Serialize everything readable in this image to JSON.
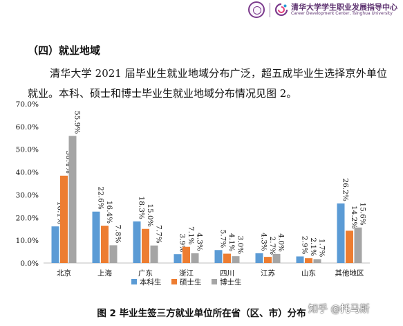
{
  "header": {
    "logo_cn": "清华大学学生职业发展指导中心",
    "logo_en": "Career Development Center, Tsinghua University"
  },
  "section_heading": "（四）就业地域",
  "paragraph": "清华大学 2021 届毕业生就业地域分布广泛，超五成毕业生选择京外单位就业。本科、硕士和博士毕业生就业地域分布情况见图 2。",
  "caption": "图 2 毕业生签三方就业单位所在省（区、市）分布",
  "watermark": "知乎 @托马斯",
  "colors": {
    "undergrad": "#5b9bd5",
    "master": "#ed7d31",
    "phd": "#a5a5a5"
  },
  "chart_data": {
    "type": "bar",
    "categories": [
      "北京",
      "上海",
      "广东",
      "浙江",
      "四川",
      "江苏",
      "山东",
      "其他地区"
    ],
    "series": [
      {
        "name": "本科生",
        "values": [
          16.1,
          22.6,
          18.3,
          3.9,
          5.7,
          4.3,
          2.9,
          26.2
        ],
        "labels": [
          "16.1%",
          "22.6%",
          "18.3%",
          "3.9%",
          "5.7%",
          "4.3%",
          "2.9%",
          "26.2%"
        ]
      },
      {
        "name": "硕士生",
        "values": [
          38.4,
          16.4,
          15.0,
          7.1,
          4.1,
          2.7,
          2.1,
          14.2
        ],
        "labels": [
          "38.4%",
          "16.4%",
          "15.0%",
          "7.1%",
          "4.1%",
          "2.7%",
          "2.1%",
          "14.2%"
        ]
      },
      {
        "name": "博士生",
        "values": [
          55.9,
          7.8,
          7.7,
          4.3,
          3.0,
          4.0,
          1.7,
          15.6
        ],
        "labels": [
          "55.9%",
          "7.8%",
          "7.7%",
          "4.3%",
          "3.0%",
          "4.0%",
          "1.7%",
          "15.6%"
        ]
      }
    ],
    "ylim": [
      0,
      70
    ],
    "yticks": [
      "0.0%",
      "10.0%",
      "20.0%",
      "30.0%",
      "40.0%",
      "50.0%",
      "60.0%",
      "70.0%"
    ],
    "legend_position": "bottom",
    "grid": false
  }
}
